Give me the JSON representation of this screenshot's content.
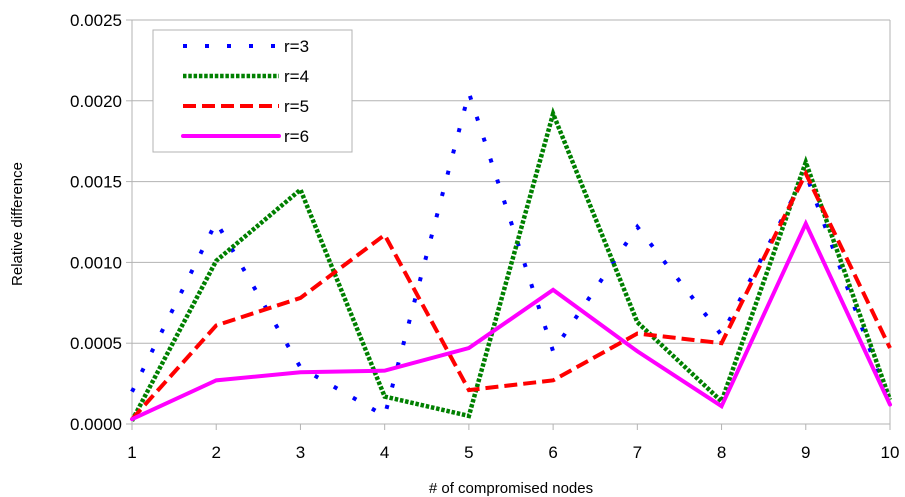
{
  "chart_data": {
    "type": "line",
    "title": "",
    "xlabel": "# of compromised nodes",
    "ylabel": "Relative difference",
    "x": [
      1,
      2,
      3,
      4,
      5,
      6,
      7,
      8,
      9,
      10
    ],
    "xlim": [
      1,
      10
    ],
    "ylim": [
      0,
      0.0025
    ],
    "y_ticks": [
      "0.0000",
      "0.0005",
      "0.0010",
      "0.0015",
      "0.0020",
      "0.0025"
    ],
    "x_ticks": [
      "1",
      "2",
      "3",
      "4",
      "5",
      "6",
      "7",
      "8",
      "9",
      "10"
    ],
    "grid": "horizontal",
    "legend_position": "top-left",
    "series": [
      {
        "name": "r=3",
        "color": "#0000ff",
        "style": "dotted",
        "values": [
          0.0002,
          0.00125,
          0.00035,
          5e-05,
          0.00205,
          0.00045,
          0.00122,
          0.00055,
          0.00155,
          0.00012
        ]
      },
      {
        "name": "r=4",
        "color": "#008000",
        "style": "dotted-thick",
        "values": [
          2e-05,
          0.00101,
          0.00145,
          0.00017,
          5e-05,
          0.00192,
          0.00063,
          0.00014,
          0.00162,
          0.00015
        ]
      },
      {
        "name": "r=5",
        "color": "#ff0000",
        "style": "dashed",
        "values": [
          3e-05,
          0.00061,
          0.00078,
          0.00117,
          0.00021,
          0.00027,
          0.00056,
          0.0005,
          0.00155,
          0.00047
        ]
      },
      {
        "name": "r=6",
        "color": "#ff00ff",
        "style": "solid",
        "values": [
          3e-05,
          0.00027,
          0.00032,
          0.00033,
          0.00047,
          0.00083,
          0.00045,
          0.00011,
          0.00124,
          0.00012
        ]
      }
    ]
  }
}
